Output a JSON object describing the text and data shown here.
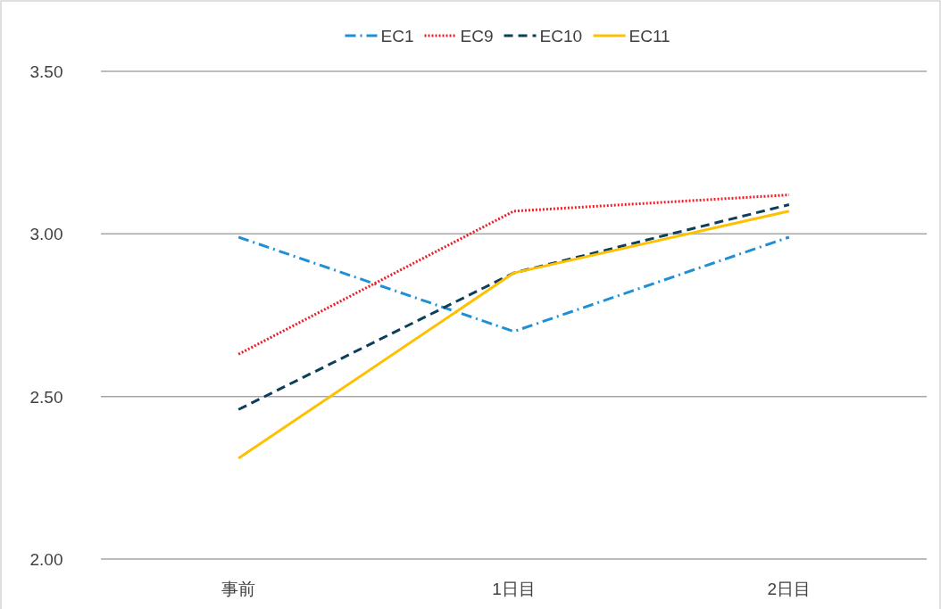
{
  "chart_data": {
    "type": "line",
    "categories": [
      "事前",
      "1日目",
      "2日目"
    ],
    "series": [
      {
        "name": "EC1",
        "color": "#1f8fd6",
        "line_style": "dashdot",
        "values": [
          2.99,
          2.7,
          2.99
        ]
      },
      {
        "name": "EC9",
        "color": "#e8202a",
        "line_style": "dotted",
        "values": [
          2.63,
          3.07,
          3.12
        ]
      },
      {
        "name": "EC10",
        "color": "#0d3f5a",
        "line_style": "dashed",
        "values": [
          2.46,
          2.88,
          3.09
        ]
      },
      {
        "name": "EC11",
        "color": "#ffc000",
        "line_style": "solid",
        "values": [
          2.31,
          2.88,
          3.07
        ]
      }
    ],
    "ylim": [
      2.0,
      3.5
    ],
    "yticks": [
      {
        "value": 2.0,
        "label": "2.00"
      },
      {
        "value": 2.5,
        "label": "2.50"
      },
      {
        "value": 3.0,
        "label": "3.00"
      },
      {
        "value": 3.5,
        "label": "3.50"
      }
    ],
    "grid": "y",
    "legend": "top",
    "marker": "none"
  }
}
